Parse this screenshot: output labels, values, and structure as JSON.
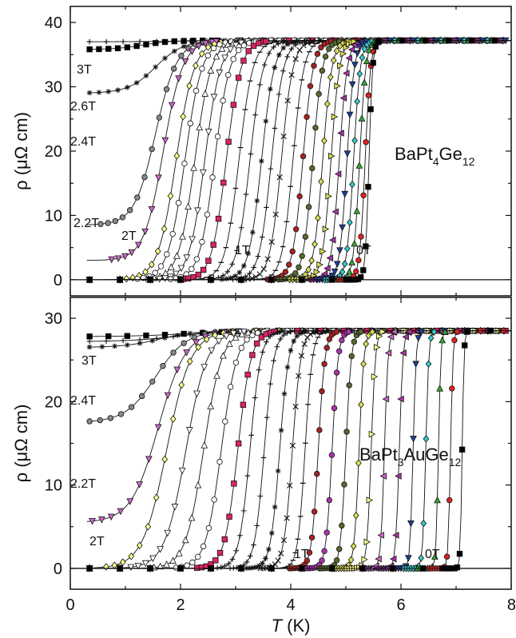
{
  "xlabel": {
    "italic": "T",
    "rest": " (K)"
  },
  "colors": {
    "axis": "#111111",
    "curve": "#111111",
    "marker_stroke": "#111111"
  },
  "chart_data": [
    {
      "type": "line",
      "compound": {
        "base1": "BaPt",
        "sub1": "4",
        "base2": "Ge",
        "sub2": "12"
      },
      "ylabel": "ρ (μΩ cm)",
      "xlim": [
        0,
        8
      ],
      "ylim": [
        -2.5,
        42.5
      ],
      "xticks": [
        "0",
        "2",
        "4",
        "6",
        "8"
      ],
      "yticks": [
        "0",
        "10",
        "20",
        "30",
        "40"
      ],
      "x_tick_values": [
        0,
        2,
        4,
        6,
        8
      ],
      "y_tick_values": [
        0,
        10,
        20,
        30,
        40
      ],
      "rho_normal": 37.2,
      "field_labels": [
        "3T",
        "2.6T",
        "2.4T",
        "2.2T",
        "2T",
        "1T",
        "0T"
      ],
      "curves": [
        {
          "Tc": 0.35,
          "w": 0.8,
          "marker": "plus",
          "color": "#000000",
          "rho_base": 37.0
        },
        {
          "Tc": 0.42,
          "w": 0.45,
          "marker": "square",
          "color": "#000000",
          "rho_base": 35.8
        },
        {
          "Tc": 0.65,
          "w": 0.45,
          "marker": "star",
          "color": "#000000",
          "rho_base": 29.0
        },
        {
          "Tc": 0.85,
          "w": 0.35,
          "marker": "circle",
          "color": "#888888",
          "rho_base": 8.5
        },
        {
          "Tc": 1.05,
          "w": 0.32,
          "marker": "tri_down",
          "color": "#cc66cc",
          "rho_base": 3.0
        },
        {
          "Tc": 1.32,
          "w": 0.3,
          "marker": "diamond",
          "color": "#ffff88",
          "rho_base": 0
        },
        {
          "Tc": 1.52,
          "w": 0.28,
          "marker": "circle",
          "color": "#ffffff",
          "rho_base": 0
        },
        {
          "Tc": 1.72,
          "w": 0.27,
          "marker": "tri_up",
          "color": "#ffffff",
          "rho_base": 0
        },
        {
          "Tc": 1.92,
          "w": 0.26,
          "marker": "tri_down",
          "color": "#ffffff",
          "rho_base": 0
        },
        {
          "Tc": 2.12,
          "w": 0.25,
          "marker": "circle",
          "color": "#ffffff",
          "rho_base": 0
        },
        {
          "Tc": 2.35,
          "w": 0.24,
          "marker": "square",
          "color": "#dd2266",
          "rho_base": 0
        },
        {
          "Tc": 2.6,
          "w": 0.23,
          "marker": "dash",
          "color": "#000000",
          "rho_base": 0
        },
        {
          "Tc": 2.82,
          "w": 0.22,
          "marker": "plus",
          "color": "#000000",
          "rho_base": 0
        },
        {
          "Tc": 3.05,
          "w": 0.21,
          "marker": "star",
          "color": "#000000",
          "rho_base": 0
        },
        {
          "Tc": 3.25,
          "w": 0.2,
          "marker": "plus",
          "color": "#000000",
          "rho_base": 0
        },
        {
          "Tc": 3.45,
          "w": 0.19,
          "marker": "cross",
          "color": "#000000",
          "rho_base": 0
        },
        {
          "Tc": 3.68,
          "w": 0.18,
          "marker": "dash",
          "color": "#000000",
          "rho_base": 0
        },
        {
          "Tc": 3.88,
          "w": 0.17,
          "marker": "circle",
          "color": "#aa2222",
          "rho_base": 0
        },
        {
          "Tc": 4.08,
          "w": 0.16,
          "marker": "circle",
          "color": "#556b2f",
          "rho_base": 0
        },
        {
          "Tc": 4.28,
          "w": 0.15,
          "marker": "diamond",
          "color": "#dddd55",
          "rho_base": 0
        },
        {
          "Tc": 4.45,
          "w": 0.14,
          "marker": "tri_right",
          "color": "#dddd55",
          "rho_base": 0
        },
        {
          "Tc": 4.62,
          "w": 0.13,
          "marker": "tri_left",
          "color": "#aa33aa",
          "rho_base": 0
        },
        {
          "Tc": 4.78,
          "w": 0.12,
          "marker": "tri_down",
          "color": "#1f3f99",
          "rho_base": 0
        },
        {
          "Tc": 4.92,
          "w": 0.11,
          "marker": "diamond",
          "color": "#33cccc",
          "rho_base": 0
        },
        {
          "Tc": 5.05,
          "w": 0.1,
          "marker": "tri_up",
          "color": "#33aa33",
          "rho_base": 0
        },
        {
          "Tc": 5.17,
          "w": 0.09,
          "marker": "circle",
          "color": "#dd2222",
          "rho_base": 0
        },
        {
          "Tc": 5.3,
          "w": 0.06,
          "marker": "square",
          "color": "#000000",
          "rho_base": 0
        }
      ]
    },
    {
      "type": "line",
      "compound": {
        "base1": "BaPt",
        "sub1": "3",
        "base2": "AuGe",
        "sub2": "12"
      },
      "ylabel": "ρ (μΩ cm)",
      "xlim": [
        0,
        8
      ],
      "ylim": [
        -2.5,
        32.5
      ],
      "xticks": [
        "0",
        "2",
        "4",
        "6",
        "8"
      ],
      "yticks": [
        "0",
        "10",
        "20",
        "30"
      ],
      "x_tick_values": [
        0,
        2,
        4,
        6,
        8
      ],
      "y_tick_values": [
        0,
        10,
        20,
        30
      ],
      "rho_normal": 28.5,
      "field_labels": [
        "3T",
        "2.4T",
        "2.2T",
        "2T",
        "1T",
        "0T"
      ],
      "curves": [
        {
          "Tc": 0.3,
          "w": 0.9,
          "marker": "square",
          "color": "#000000",
          "rho_base": 27.8
        },
        {
          "Tc": 0.35,
          "w": 0.8,
          "marker": "plus",
          "color": "#000000",
          "rho_base": 27.2
        },
        {
          "Tc": 0.42,
          "w": 0.6,
          "marker": "star",
          "color": "#000000",
          "rho_base": 26.5
        },
        {
          "Tc": 0.55,
          "w": 0.5,
          "marker": "circle",
          "color": "#888888",
          "rho_base": 17.5
        },
        {
          "Tc": 0.7,
          "w": 0.45,
          "marker": "tri_down",
          "color": "#cc66cc",
          "rho_base": 5.5
        },
        {
          "Tc": 0.95,
          "w": 0.4,
          "marker": "diamond",
          "color": "#ffff88",
          "rho_base": 0
        },
        {
          "Tc": 1.4,
          "w": 0.35,
          "marker": "tri_down",
          "color": "#ffffff",
          "rho_base": 0
        },
        {
          "Tc": 1.82,
          "w": 0.3,
          "marker": "tri_up",
          "color": "#ffffff",
          "rho_base": 0
        },
        {
          "Tc": 2.22,
          "w": 0.26,
          "marker": "circle",
          "color": "#ffffff",
          "rho_base": 0
        },
        {
          "Tc": 2.6,
          "w": 0.22,
          "marker": "square",
          "color": "#dd2266",
          "rho_base": 0
        },
        {
          "Tc": 2.9,
          "w": 0.18,
          "marker": "plus",
          "color": "#000000",
          "rho_base": 0
        },
        {
          "Tc": 3.2,
          "w": 0.16,
          "marker": "plus",
          "color": "#000000",
          "rho_base": 0
        },
        {
          "Tc": 3.5,
          "w": 0.15,
          "marker": "star",
          "color": "#000000",
          "rho_base": 0
        },
        {
          "Tc": 3.75,
          "w": 0.14,
          "marker": "cross",
          "color": "#000000",
          "rho_base": 0
        },
        {
          "Tc": 4.02,
          "w": 0.12,
          "marker": "dash",
          "color": "#000000",
          "rho_base": 0
        },
        {
          "Tc": 4.28,
          "w": 0.11,
          "marker": "circle",
          "color": "#aa2222",
          "rho_base": 0
        },
        {
          "Tc": 4.55,
          "w": 0.1,
          "marker": "circle",
          "color": "#aa33aa",
          "rho_base": 0
        },
        {
          "Tc": 4.82,
          "w": 0.09,
          "marker": "circle",
          "color": "#556b2f",
          "rho_base": 0
        },
        {
          "Tc": 5.08,
          "w": 0.08,
          "marker": "diamond",
          "color": "#dddd55",
          "rho_base": 0
        },
        {
          "Tc": 5.32,
          "w": 0.07,
          "marker": "tri_right",
          "color": "#ffff88",
          "rho_base": 0
        },
        {
          "Tc": 5.58,
          "w": 0.06,
          "marker": "tri_left",
          "color": "#cc66cc",
          "rho_base": 0
        },
        {
          "Tc": 5.85,
          "w": 0.06,
          "marker": "tri_left",
          "color": "#aa33aa",
          "rho_base": 0
        },
        {
          "Tc": 6.12,
          "w": 0.05,
          "marker": "tri_down",
          "color": "#1f3f99",
          "rho_base": 0
        },
        {
          "Tc": 6.35,
          "w": 0.05,
          "marker": "diamond",
          "color": "#33cccc",
          "rho_base": 0
        },
        {
          "Tc": 6.6,
          "w": 0.04,
          "marker": "tri_up",
          "color": "#33aa33",
          "rho_base": 0
        },
        {
          "Tc": 6.82,
          "w": 0.04,
          "marker": "circle",
          "color": "#dd2222",
          "rho_base": 0
        },
        {
          "Tc": 7.05,
          "w": 0.03,
          "marker": "square",
          "color": "#000000",
          "rho_base": 0
        }
      ]
    }
  ]
}
